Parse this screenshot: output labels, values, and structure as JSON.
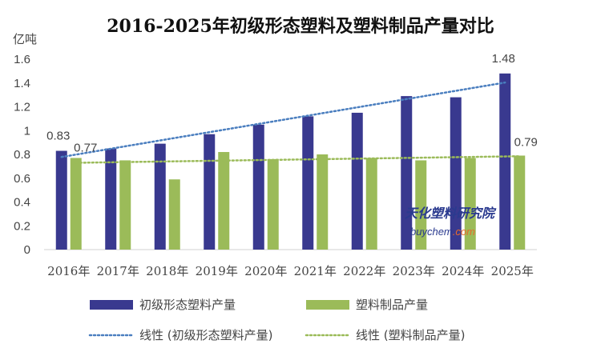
{
  "chart_data": {
    "type": "bar",
    "title": "2016-2025年初级形态塑料及塑料制品产量对比",
    "ylabel": "亿吨",
    "ylim": [
      0,
      1.6
    ],
    "yticks": [
      "0",
      "0.2",
      "0.4",
      "0.6",
      "0.8",
      "1",
      "1.2",
      "1.4",
      "1.6"
    ],
    "categories": [
      "2016年",
      "2017年",
      "2018年",
      "2019年",
      "2020年",
      "2021年",
      "2022年",
      "2023年",
      "2024年",
      "2025年"
    ],
    "grid": false,
    "legend_position": "bottom",
    "series": [
      {
        "name": "初级形态塑料产量",
        "color": "#39398f",
        "values": [
          0.83,
          0.85,
          0.89,
          0.97,
          1.05,
          1.12,
          1.15,
          1.29,
          1.28,
          1.48
        ]
      },
      {
        "name": "塑料制品产量",
        "color": "#9bbb59",
        "values": [
          0.77,
          0.75,
          0.59,
          0.82,
          0.76,
          0.8,
          0.77,
          0.75,
          0.77,
          0.79
        ]
      }
    ],
    "trendlines": [
      {
        "name": "线性 (初级形态塑料产量)",
        "color": "#4a7ebf",
        "series_index": 0
      },
      {
        "name": "线性 (塑料制品产量)",
        "color": "#9bbb59",
        "series_index": 1
      }
    ],
    "data_labels": [
      {
        "series_index": 0,
        "category_index": 0,
        "text": "0.83"
      },
      {
        "series_index": 1,
        "category_index": 0,
        "text": "0.77"
      },
      {
        "series_index": 0,
        "category_index": 9,
        "text": "1.48"
      },
      {
        "series_index": 1,
        "category_index": 9,
        "text": "0.79"
      }
    ]
  },
  "watermark": {
    "line1": "天化塑料研究院",
    "line2": "buychem",
    "line3": ".com"
  }
}
